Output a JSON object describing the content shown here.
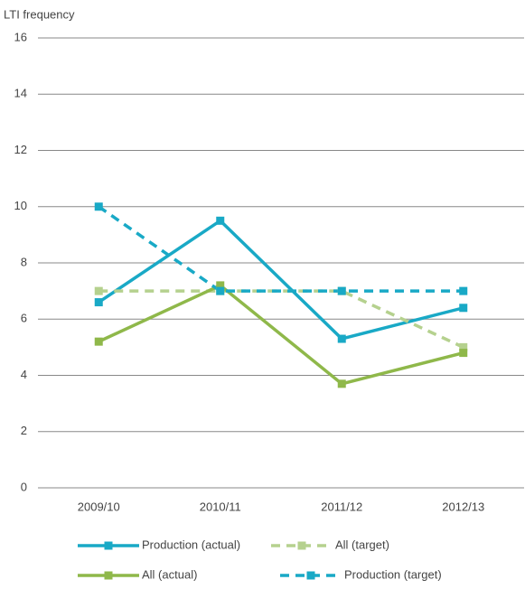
{
  "chart_data": {
    "type": "line",
    "y_label": "LTI frequency",
    "categories": [
      "2009/10",
      "2010/11",
      "2011/12",
      "2012/13"
    ],
    "series": [
      {
        "name": "Production (actual)",
        "color": "#19a9c6",
        "dashed": false,
        "values": [
          6.6,
          9.5,
          5.3,
          6.4
        ]
      },
      {
        "name": "All (target)",
        "color": "#b5d18e",
        "dashed": true,
        "values": [
          7.0,
          7.0,
          7.0,
          5.0
        ]
      },
      {
        "name": "All (actual)",
        "color": "#8fb84a",
        "dashed": false,
        "values": [
          5.2,
          7.2,
          3.7,
          4.8
        ]
      },
      {
        "name": "Production (target)",
        "color": "#19a9c6",
        "dashed": true,
        "values": [
          10,
          7,
          7,
          7
        ]
      }
    ],
    "ylim": [
      0,
      16
    ],
    "yticks": [
      0,
      2,
      4,
      6,
      8,
      10,
      12,
      14,
      16
    ],
    "grid": true
  }
}
